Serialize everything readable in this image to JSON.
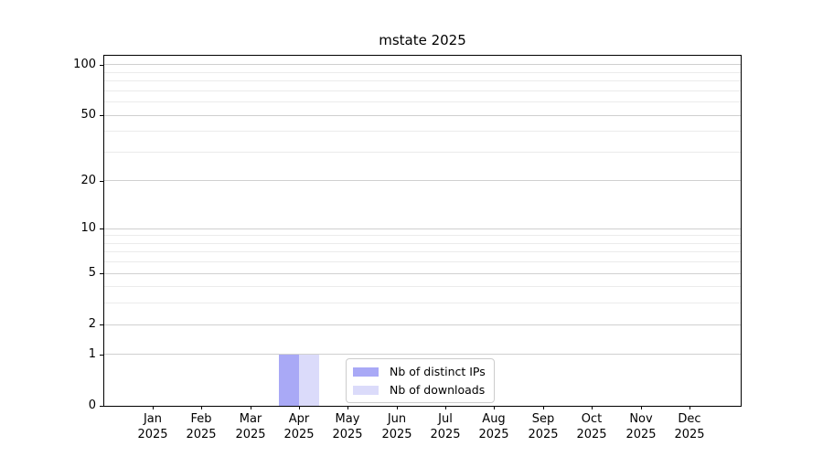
{
  "chart_data": {
    "type": "bar",
    "title": "mstate 2025",
    "x": {
      "months": [
        "Jan",
        "Feb",
        "Mar",
        "Apr",
        "May",
        "Jun",
        "Jul",
        "Aug",
        "Sep",
        "Oct",
        "Nov",
        "Dec"
      ],
      "year": "2025"
    },
    "y_axis": {
      "scale": "log1p",
      "ticks": [
        0,
        1,
        2,
        5,
        10,
        20,
        50,
        100
      ],
      "minor_ticks": [
        3,
        4,
        6,
        7,
        8,
        9,
        30,
        40,
        60,
        70,
        80,
        90
      ],
      "max": 113
    },
    "series": [
      {
        "name": "Nb of distinct IPs",
        "color": "#a9a9f6",
        "values": [
          0,
          0,
          0,
          1,
          0,
          0,
          0,
          0,
          0,
          0,
          0,
          0
        ]
      },
      {
        "name": "Nb of downloads",
        "color": "#dbdbfa",
        "values": [
          0,
          0,
          0,
          1,
          0,
          0,
          0,
          0,
          0,
          0,
          0,
          0
        ]
      }
    ],
    "legend": {
      "position": "lower-center",
      "entries": [
        "Nb of distinct IPs",
        "Nb of downloads"
      ]
    },
    "grid": true,
    "colors": {
      "background": "#ffffff",
      "axis": "#000000",
      "grid_major": "#d0d0d0",
      "grid_minor": "#ebebeb"
    }
  }
}
